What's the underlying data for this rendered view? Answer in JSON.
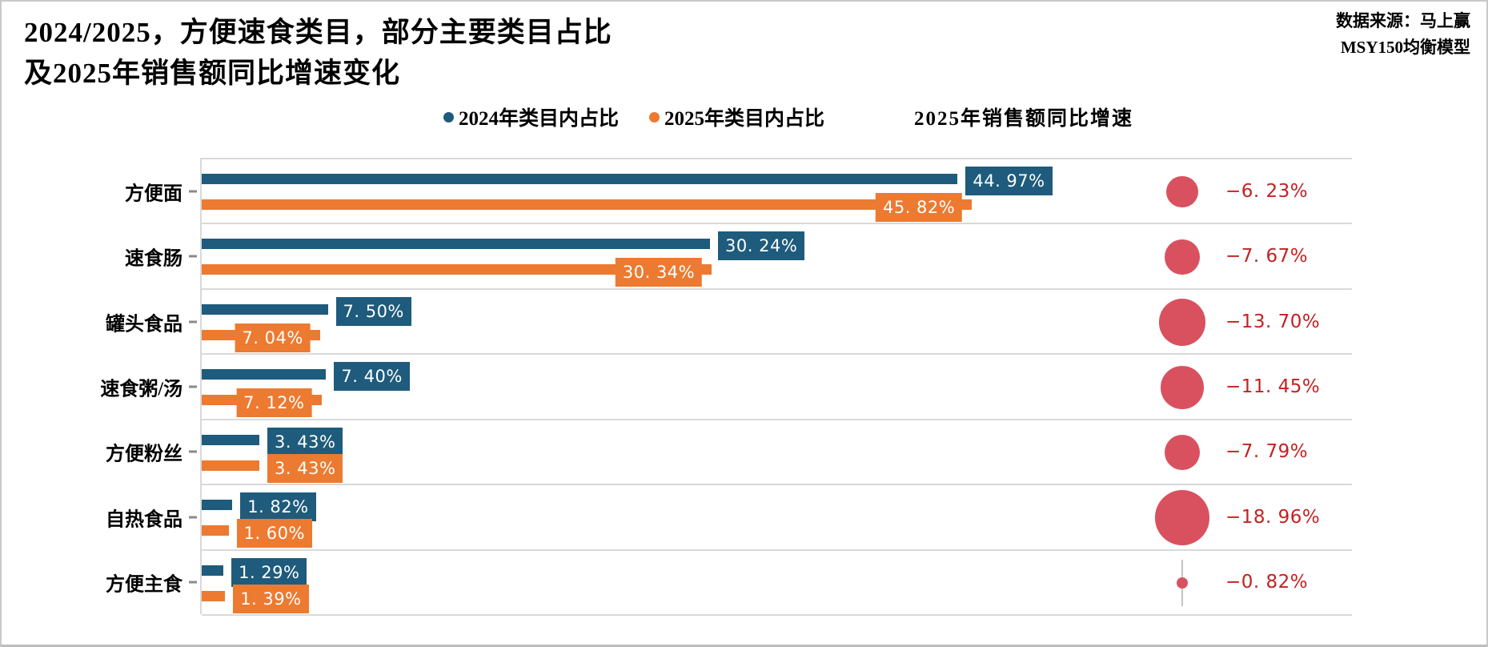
{
  "title": {
    "line1": "2024/2025，方便速食类目，部分主要类目占比",
    "line2": "及2025年销售额同比增速变化"
  },
  "source": {
    "line1": "数据来源：马上赢",
    "line2": "MSY150均衡模型"
  },
  "legend": {
    "items": [
      {
        "label": "2024年类目内占比",
        "color": "#1e5b7c"
      },
      {
        "label": "2025年类目内占比",
        "color": "#ec7a31"
      }
    ]
  },
  "growth_header": "2025年销售额同比增速",
  "colors": {
    "bar_2024": "#1e5b7c",
    "bar_2025": "#ec7a31",
    "bubble": "#d9515f",
    "growth_text": "#c32121",
    "gridline": "#d9d9d9",
    "background": "#ffffff"
  },
  "chart_data": {
    "type": "bar",
    "orientation": "horizontal",
    "categories": [
      "方便面",
      "速食肠",
      "罐头食品",
      "速食粥/汤",
      "方便粉丝",
      "自热食品",
      "方便主食"
    ],
    "series": [
      {
        "name": "2024年类目内占比",
        "color": "#1e5b7c",
        "values": [
          44.97,
          30.24,
          7.5,
          7.4,
          3.43,
          1.82,
          1.29
        ],
        "labels": [
          "44. 97%",
          "30. 24%",
          "7. 50%",
          "7. 40%",
          "3. 43%",
          "1. 82%",
          "1. 29%"
        ]
      },
      {
        "name": "2025年类目内占比",
        "color": "#ec7a31",
        "values": [
          45.82,
          30.34,
          7.04,
          7.12,
          3.43,
          1.6,
          1.39
        ],
        "labels": [
          "45. 82%",
          "30. 34%",
          "7. 04%",
          "7. 12%",
          "3. 43%",
          "1. 60%",
          "1. 39%"
        ]
      },
      {
        "name": "2025年销售额同比增速",
        "type": "bubble",
        "color": "#d9515f",
        "values": [
          -6.23,
          -7.67,
          -13.7,
          -11.45,
          -7.79,
          -18.96,
          -0.82
        ],
        "labels": [
          "−6. 23%",
          "−7. 67%",
          "−13. 70%",
          "−11. 45%",
          "−7. 79%",
          "−18. 96%",
          "−0. 82%"
        ]
      }
    ],
    "xlim": [
      0,
      48
    ],
    "grid": "row-separators",
    "legend_position": "top-center"
  }
}
